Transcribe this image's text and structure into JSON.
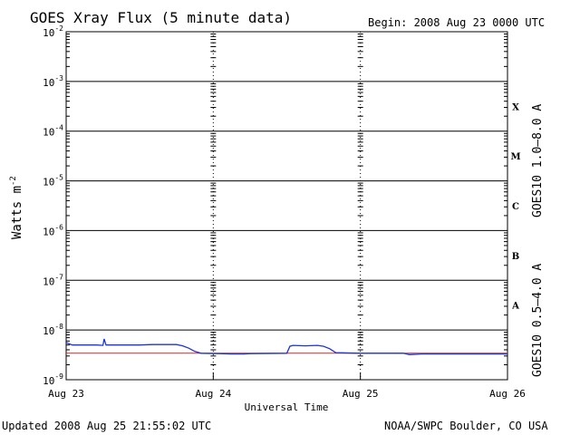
{
  "chart_data": {
    "type": "line",
    "title": "GOES Xray Flux (5 minute data)",
    "begin": "Begin:  2008 Aug 23 0000 UTC",
    "xlabel": "Universal Time",
    "ylabel": "Watts m",
    "ylabel_sup": "-2",
    "updated": "Updated 2008 Aug 25 21:55:02 UTC",
    "credit": "NOAA/SWPC Boulder, CO USA",
    "y_scale": "log",
    "ylim": [
      1e-09,
      0.01
    ],
    "xlim": [
      0,
      72
    ],
    "x_unit": "hours since 2008 Aug 23 0000 UTC",
    "y_ticks": [
      {
        "exp": -2,
        "base": "10",
        "sup": "-2"
      },
      {
        "exp": -3,
        "base": "10",
        "sup": "-3"
      },
      {
        "exp": -4,
        "base": "10",
        "sup": "-4"
      },
      {
        "exp": -5,
        "base": "10",
        "sup": "-5"
      },
      {
        "exp": -6,
        "base": "10",
        "sup": "-6"
      },
      {
        "exp": -7,
        "base": "10",
        "sup": "-7"
      },
      {
        "exp": -8,
        "base": "10",
        "sup": "-8"
      },
      {
        "exp": -9,
        "base": "10",
        "sup": "-9"
      }
    ],
    "x_ticks": [
      {
        "x": 0,
        "label": "Aug 23"
      },
      {
        "x": 24,
        "label": "Aug 24"
      },
      {
        "x": 48,
        "label": "Aug 25"
      },
      {
        "x": 72,
        "label": "Aug 26"
      }
    ],
    "flare_classes": [
      {
        "label": "X",
        "exp": -3.5
      },
      {
        "label": "M",
        "exp": -4.5
      },
      {
        "label": "C",
        "exp": -5.5
      },
      {
        "label": "B",
        "exp": -6.5
      },
      {
        "label": "A",
        "exp": -7.5
      }
    ],
    "grid": true,
    "series": [
      {
        "name": "GOES10 1.0–8.0 A",
        "color": "#e8221c",
        "points": [
          [
            0,
            3.4e-09
          ],
          [
            10,
            3.4e-09
          ],
          [
            20,
            3.4e-09
          ],
          [
            30,
            3.4e-09
          ],
          [
            40,
            3.4e-09
          ],
          [
            50,
            3.4e-09
          ],
          [
            60,
            3.4e-09
          ],
          [
            70,
            3.4e-09
          ],
          [
            72,
            3.4e-09
          ]
        ]
      },
      {
        "name": "GOES10 0.5–4.0 A",
        "color": "#1c35d8",
        "points": [
          [
            0,
            5.6e-09
          ],
          [
            1,
            5e-09
          ],
          [
            5,
            5e-09
          ],
          [
            6,
            4.9e-09
          ],
          [
            6.2,
            6.6e-09
          ],
          [
            6.5,
            5e-09
          ],
          [
            12,
            5e-09
          ],
          [
            14,
            5.1e-09
          ],
          [
            18,
            5.1e-09
          ],
          [
            19,
            4.8e-09
          ],
          [
            20,
            4.3e-09
          ],
          [
            21,
            3.7e-09
          ],
          [
            22,
            3.4e-09
          ],
          [
            25,
            3.35e-09
          ],
          [
            27,
            3.3e-09
          ],
          [
            29,
            3.3e-09
          ],
          [
            30,
            3.35e-09
          ],
          [
            36,
            3.4e-09
          ],
          [
            36.5,
            4.7e-09
          ],
          [
            37,
            4.9e-09
          ],
          [
            39,
            4.8e-09
          ],
          [
            41,
            4.9e-09
          ],
          [
            42,
            4.7e-09
          ],
          [
            43,
            4.2e-09
          ],
          [
            44,
            3.5e-09
          ],
          [
            48,
            3.4e-09
          ],
          [
            55,
            3.4e-09
          ],
          [
            56,
            3.2e-09
          ],
          [
            58,
            3.3e-09
          ],
          [
            65,
            3.3e-09
          ],
          [
            72,
            3.3e-09
          ]
        ]
      }
    ]
  }
}
